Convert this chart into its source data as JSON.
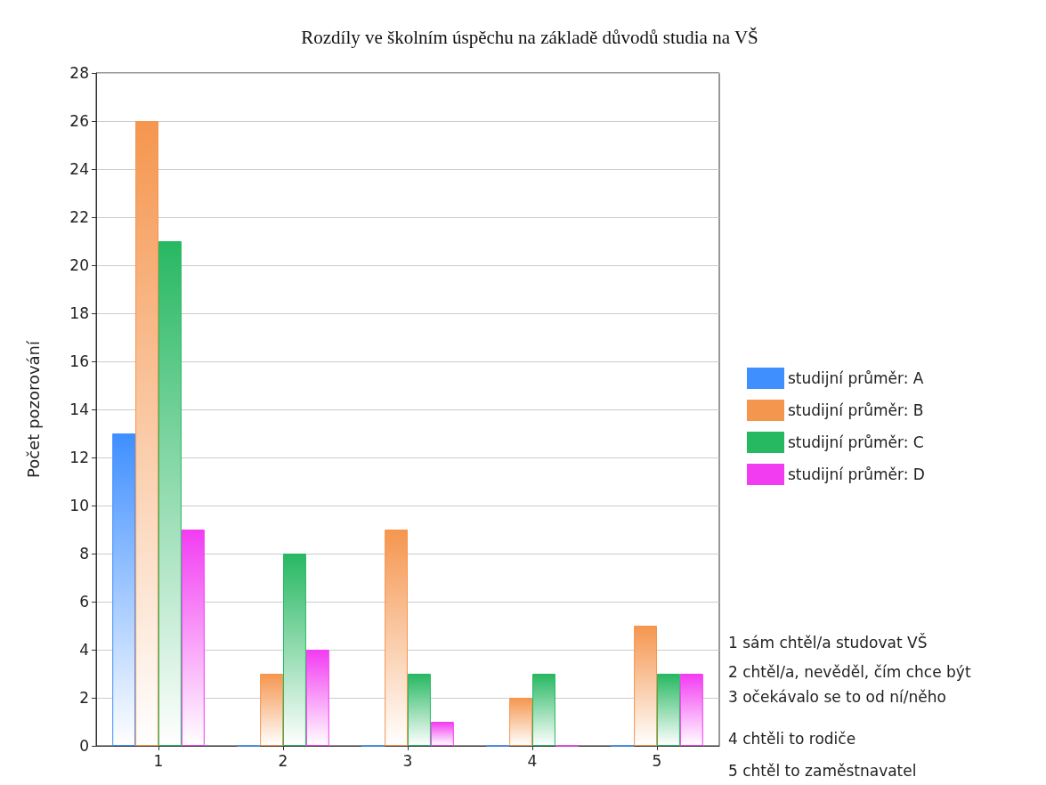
{
  "chart_data": {
    "type": "bar",
    "title": "Rozdíly ve školním úspěchu na základě důvodů studia na VŠ",
    "ylabel": "Počet pozorování",
    "categories": [
      "1",
      "2",
      "3",
      "4",
      "5"
    ],
    "series": [
      {
        "name": "studijní průměr: A",
        "color": "#3f8fff",
        "values": [
          13,
          0,
          0,
          0,
          0
        ]
      },
      {
        "name": "studijní průměr: B",
        "color": "#f5964f",
        "values": [
          26,
          3,
          9,
          2,
          5
        ]
      },
      {
        "name": "studijní průměr: C",
        "color": "#27b862",
        "values": [
          21,
          8,
          3,
          3,
          3
        ]
      },
      {
        "name": "studijní průměr: D",
        "color": "#f23cf2",
        "values": [
          9,
          4,
          1,
          0,
          3
        ]
      }
    ],
    "ylim": [
      0,
      28
    ],
    "yticks": [
      0,
      2,
      4,
      6,
      8,
      10,
      12,
      14,
      16,
      18,
      20,
      22,
      24,
      26,
      28
    ],
    "grid": "y",
    "legend": "right",
    "annotations": [
      "1 sám chtěl/a studovat VŠ",
      "2 chtěl/a, nevěděl, čím chce být",
      "3 očekávalo se to od ní/něho",
      "4 chtěli to rodiče",
      "5 chtěl to zaměstnavatel"
    ]
  }
}
